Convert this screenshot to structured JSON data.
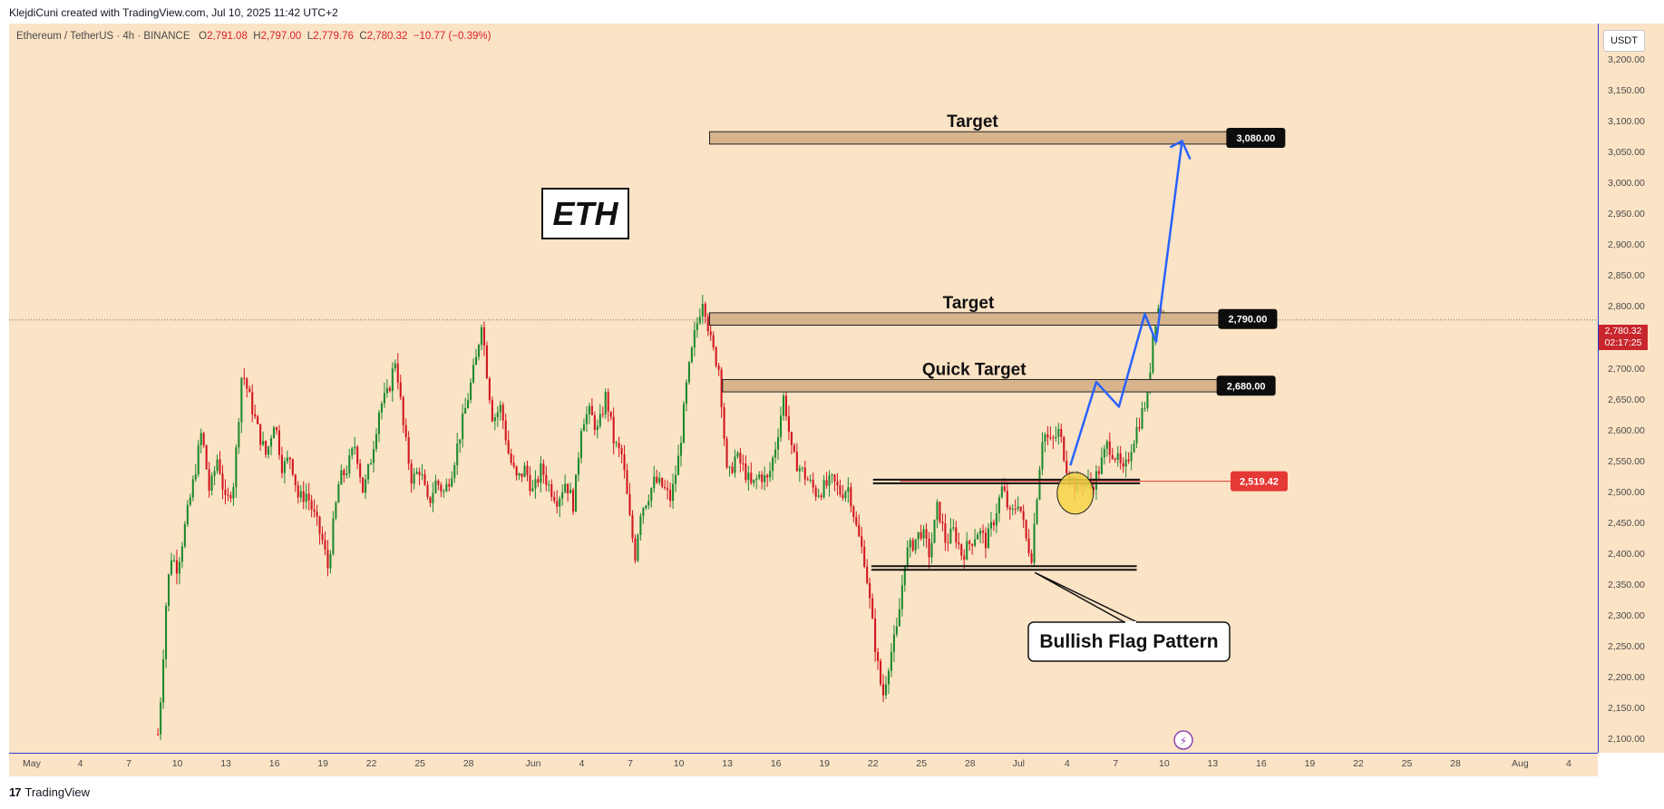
{
  "header": {
    "credit": "KlejdiCuni created with TradingView.com, Jul 10, 2025 11:42 UTC+2"
  },
  "legend": {
    "symbol": "Ethereum / TetherUS · 4h · BINANCE",
    "open_label": "O",
    "open": "2,791.08",
    "high_label": "H",
    "high": "2,797.00",
    "low_label": "L",
    "low": "2,779.76",
    "close_label": "C",
    "close": "2,780.32",
    "change": "−10.77 (−0.39%)"
  },
  "currency_button": "USDT",
  "current_price": {
    "value": "2,780.32",
    "countdown": "02:17:25"
  },
  "footer": {
    "logo_text": "TradingView",
    "logo_mark": "17"
  },
  "colors": {
    "background": "#fbe3c5",
    "up": "#1d8a2e",
    "down": "#d1161f",
    "zone": "#d8b48c",
    "projection": "#2962ff",
    "axis_line": "#2a3fd8",
    "breakout_label": "#e53935",
    "highlight": "#f5d547"
  },
  "chart_data": {
    "type": "candlestick",
    "symbol": "ETHUSDT",
    "timeframe": "4h",
    "y_axis": {
      "ticks": [
        2100,
        2150,
        2200,
        2250,
        2300,
        2350,
        2400,
        2450,
        2500,
        2550,
        2600,
        2650,
        2700,
        2750,
        2800,
        2850,
        2900,
        2950,
        3000,
        3050,
        3100,
        3150,
        3200
      ],
      "tick_labels": [
        "2,100.00",
        "2,150.00",
        "2,200.00",
        "2,250.00",
        "2,300.00",
        "2,350.00",
        "2,400.00",
        "2,450.00",
        "2,500.00",
        "2,550.00",
        "2,600.00",
        "2,650.00",
        "2,700.00",
        "2,750.00",
        "2,800.00",
        "2,850.00",
        "2,900.00",
        "2,950.00",
        "3,000.00",
        "3,050.00",
        "3,100.00",
        "3,150.00",
        "3,200.00"
      ],
      "range": [
        2080,
        3260
      ]
    },
    "x_axis": {
      "ticks": [
        {
          "day": 1,
          "label": "May"
        },
        {
          "day": 4,
          "label": "4"
        },
        {
          "day": 7,
          "label": "7"
        },
        {
          "day": 10,
          "label": "10"
        },
        {
          "day": 13,
          "label": "13"
        },
        {
          "day": 16,
          "label": "16"
        },
        {
          "day": 19,
          "label": "19"
        },
        {
          "day": 22,
          "label": "22"
        },
        {
          "day": 25,
          "label": "25"
        },
        {
          "day": 28,
          "label": "28"
        },
        {
          "day": 32,
          "label": "Jun"
        },
        {
          "day": 35,
          "label": "4"
        },
        {
          "day": 38,
          "label": "7"
        },
        {
          "day": 41,
          "label": "10"
        },
        {
          "day": 44,
          "label": "13"
        },
        {
          "day": 47,
          "label": "16"
        },
        {
          "day": 50,
          "label": "19"
        },
        {
          "day": 53,
          "label": "22"
        },
        {
          "day": 56,
          "label": "25"
        },
        {
          "day": 59,
          "label": "28"
        },
        {
          "day": 62,
          "label": "Jul"
        },
        {
          "day": 65,
          "label": "4"
        },
        {
          "day": 68,
          "label": "7"
        },
        {
          "day": 71,
          "label": "10"
        },
        {
          "day": 74,
          "label": "13"
        },
        {
          "day": 77,
          "label": "16"
        },
        {
          "day": 80,
          "label": "19"
        },
        {
          "day": 83,
          "label": "22"
        },
        {
          "day": 86,
          "label": "25"
        },
        {
          "day": 89,
          "label": "28"
        },
        {
          "day": 93,
          "label": "Aug"
        },
        {
          "day": 96,
          "label": "4"
        }
      ],
      "range_days": [
        -0.4,
        97.8
      ],
      "note": "x values are days counted from May 1, 2025 (day 1 = May 1)"
    },
    "price_path": [
      [
        8.8,
        2110
      ],
      [
        9.0,
        2180
      ],
      [
        9.3,
        2320
      ],
      [
        9.6,
        2400
      ],
      [
        10.0,
        2380
      ],
      [
        10.5,
        2450
      ],
      [
        11.0,
        2520
      ],
      [
        11.5,
        2600
      ],
      [
        12.0,
        2500
      ],
      [
        12.5,
        2560
      ],
      [
        13.0,
        2480
      ],
      [
        13.5,
        2520
      ],
      [
        14.0,
        2700
      ],
      [
        14.5,
        2650
      ],
      [
        15.0,
        2600
      ],
      [
        15.5,
        2560
      ],
      [
        16.0,
        2620
      ],
      [
        16.5,
        2540
      ],
      [
        17.0,
        2560
      ],
      [
        17.5,
        2490
      ],
      [
        18.0,
        2500
      ],
      [
        18.5,
        2460
      ],
      [
        19.0,
        2420
      ],
      [
        19.3,
        2380
      ],
      [
        19.6,
        2440
      ],
      [
        20.0,
        2520
      ],
      [
        20.5,
        2540
      ],
      [
        21.0,
        2580
      ],
      [
        21.5,
        2500
      ],
      [
        22.0,
        2560
      ],
      [
        22.5,
        2640
      ],
      [
        23.0,
        2660
      ],
      [
        23.5,
        2720
      ],
      [
        24.0,
        2600
      ],
      [
        24.5,
        2520
      ],
      [
        25.0,
        2540
      ],
      [
        25.5,
        2480
      ],
      [
        26.0,
        2520
      ],
      [
        26.5,
        2500
      ],
      [
        27.0,
        2540
      ],
      [
        27.5,
        2600
      ],
      [
        28.0,
        2660
      ],
      [
        28.5,
        2720
      ],
      [
        28.8,
        2780
      ],
      [
        29.2,
        2680
      ],
      [
        29.5,
        2620
      ],
      [
        30.0,
        2640
      ],
      [
        30.5,
        2560
      ],
      [
        31.0,
        2520
      ],
      [
        31.5,
        2540
      ],
      [
        32.0,
        2500
      ],
      [
        32.5,
        2540
      ],
      [
        33.0,
        2510
      ],
      [
        33.5,
        2490
      ],
      [
        34.0,
        2520
      ],
      [
        34.5,
        2480
      ],
      [
        35.0,
        2620
      ],
      [
        35.5,
        2630
      ],
      [
        36.0,
        2600
      ],
      [
        36.5,
        2660
      ],
      [
        37.0,
        2580
      ],
      [
        37.5,
        2560
      ],
      [
        38.0,
        2450
      ],
      [
        38.3,
        2400
      ],
      [
        38.6,
        2470
      ],
      [
        39.0,
        2490
      ],
      [
        39.5,
        2520
      ],
      [
        40.0,
        2510
      ],
      [
        40.5,
        2490
      ],
      [
        41.0,
        2560
      ],
      [
        41.5,
        2680
      ],
      [
        42.0,
        2760
      ],
      [
        42.5,
        2820
      ],
      [
        43.0,
        2740
      ],
      [
        43.5,
        2700
      ],
      [
        44.0,
        2520
      ],
      [
        44.5,
        2560
      ],
      [
        45.0,
        2540
      ],
      [
        45.5,
        2510
      ],
      [
        46.0,
        2530
      ],
      [
        46.5,
        2520
      ],
      [
        47.0,
        2580
      ],
      [
        47.5,
        2660
      ],
      [
        48.0,
        2560
      ],
      [
        48.5,
        2540
      ],
      [
        49.0,
        2520
      ],
      [
        49.5,
        2500
      ],
      [
        50.0,
        2510
      ],
      [
        50.5,
        2520
      ],
      [
        51.0,
        2500
      ],
      [
        51.5,
        2510
      ],
      [
        52.0,
        2440
      ],
      [
        52.5,
        2390
      ],
      [
        53.0,
        2280
      ],
      [
        53.3,
        2220
      ],
      [
        53.6,
        2170
      ],
      [
        54.0,
        2230
      ],
      [
        54.5,
        2280
      ],
      [
        55.0,
        2400
      ],
      [
        55.5,
        2420
      ],
      [
        56.0,
        2440
      ],
      [
        56.5,
        2400
      ],
      [
        57.0,
        2480
      ],
      [
        57.5,
        2420
      ],
      [
        58.0,
        2440
      ],
      [
        58.5,
        2400
      ],
      [
        59.0,
        2420
      ],
      [
        59.5,
        2440
      ],
      [
        60.0,
        2420
      ],
      [
        60.5,
        2460
      ],
      [
        61.0,
        2510
      ],
      [
        61.5,
        2460
      ],
      [
        62.0,
        2490
      ],
      [
        62.5,
        2420
      ],
      [
        62.8,
        2400
      ],
      [
        63.2,
        2520
      ],
      [
        63.5,
        2600
      ],
      [
        64.0,
        2580
      ],
      [
        64.5,
        2600
      ],
      [
        65.0,
        2540
      ],
      [
        65.5,
        2510
      ],
      [
        66.0,
        2520
      ],
      [
        66.5,
        2510
      ],
      [
        67.0,
        2540
      ],
      [
        67.5,
        2580
      ],
      [
        68.0,
        2560
      ],
      [
        68.5,
        2530
      ],
      [
        69.0,
        2580
      ],
      [
        69.5,
        2620
      ],
      [
        70.0,
        2660
      ],
      [
        70.3,
        2760
      ],
      [
        70.6,
        2800
      ],
      [
        71.0,
        2780
      ]
    ],
    "zones": [
      {
        "label": "Target",
        "low": 3065,
        "high": 3085,
        "start_day": 42.9,
        "end_day": 75.4,
        "price_tag": "3,080.00"
      },
      {
        "label": "Target",
        "low": 2772,
        "high": 2792,
        "start_day": 42.9,
        "end_day": 74.9,
        "price_tag": "2,790.00"
      },
      {
        "label": "Quick Target",
        "low": 2664,
        "high": 2684,
        "start_day": 43.7,
        "end_day": 74.8,
        "price_tag": "2,680.00"
      }
    ],
    "flag_lines": [
      {
        "level": 2519,
        "start_day": 53.0,
        "end_day": 69.5
      },
      {
        "level": 2379,
        "start_day": 52.9,
        "end_day": 69.3
      }
    ],
    "breakout_level": {
      "value": 2519.42,
      "label": "2,519.42",
      "end_day": 76.5
    },
    "projection_path": [
      [
        65.2,
        2545
      ],
      [
        66.8,
        2680
      ],
      [
        68.2,
        2640
      ],
      [
        69.8,
        2790
      ],
      [
        70.5,
        2745
      ],
      [
        72.1,
        3070
      ]
    ],
    "annotations": {
      "title_box": "ETH",
      "pattern_label": "Bullish Flag Pattern"
    }
  }
}
